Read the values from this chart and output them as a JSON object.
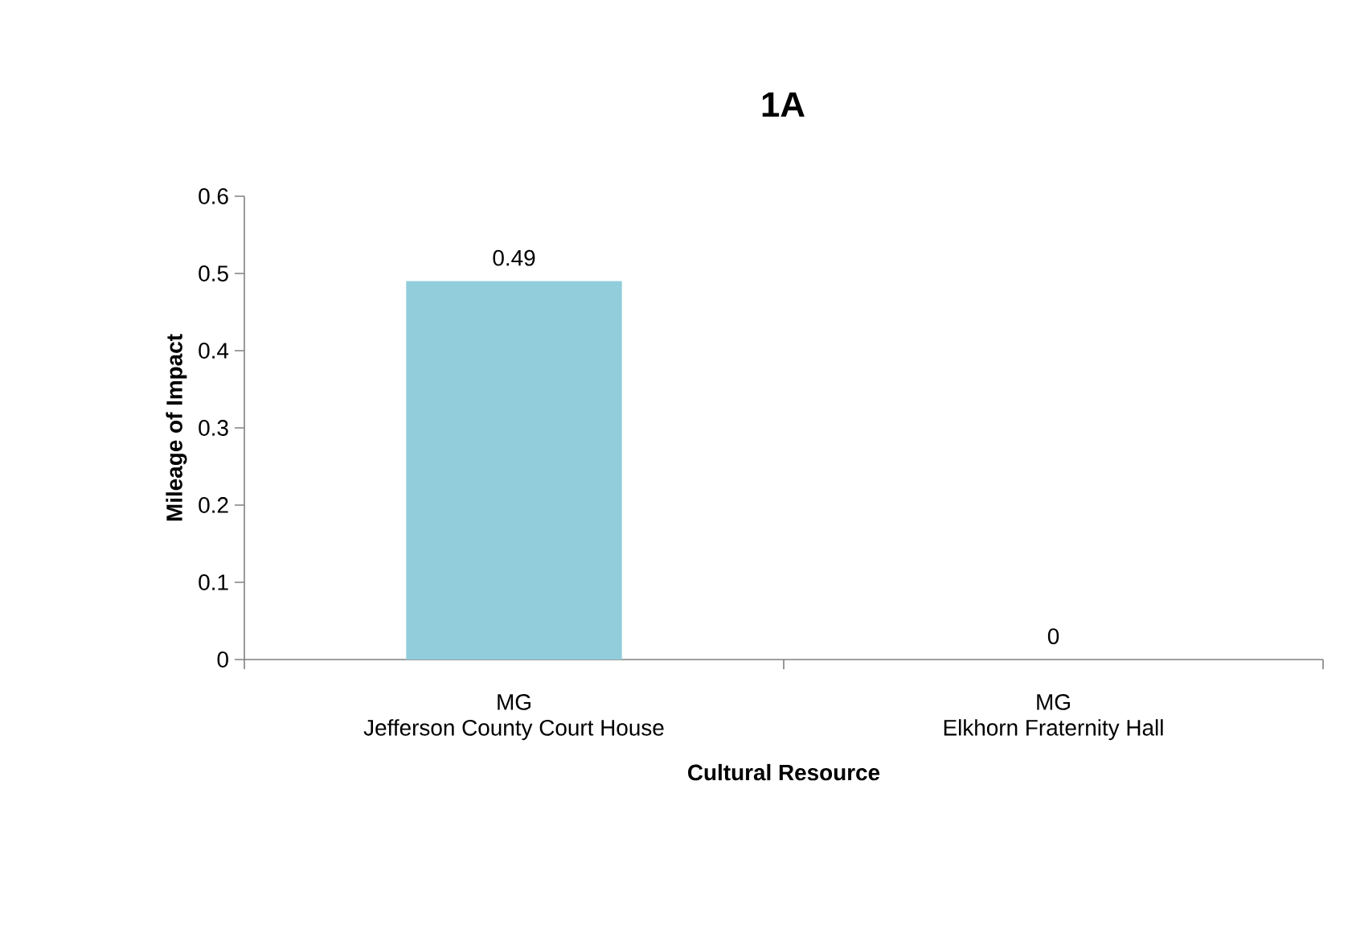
{
  "chart_data": {
    "type": "bar",
    "title": "1A",
    "xlabel": "Cultural Resource",
    "ylabel": "Mileage of Impact",
    "categories": [
      "MG\nJefferson County Court House",
      "MG\nElkhorn Fraternity Hall"
    ],
    "values": [
      0.49,
      0
    ],
    "color": "#92cddc",
    "ylim": [
      0,
      0.6
    ],
    "yticks": [
      0,
      0.1,
      0.2,
      0.3,
      0.4,
      0.5,
      0.6
    ],
    "data_labels": true
  }
}
